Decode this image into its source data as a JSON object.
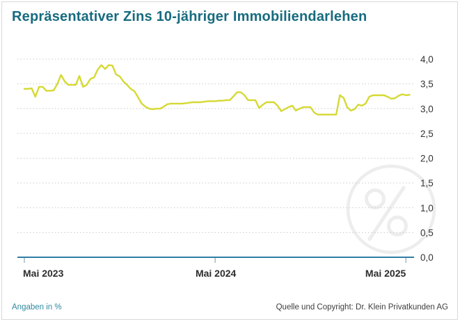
{
  "title": "Repräsentativer Zins 10-jähriger Immobiliendarlehen",
  "footer": {
    "unit_note": "Angaben in %",
    "source": "Quelle und Copyright: Dr. Klein Privatkunden AG"
  },
  "watermark_icon": "percent-circle-icon",
  "colors": {
    "title": "#176b7f",
    "line": "#d5d932",
    "axis": "#2f7ea6",
    "grid": "#c9c9c9",
    "tick": "#8fa6b0",
    "x_label": "#2d2d2d",
    "y_label": "#333333",
    "unit_note": "#2d8ba1",
    "source": "#3d3d3d",
    "watermark": "#ededed",
    "border": "#d9d9d9"
  },
  "chart_data": {
    "type": "line",
    "title": "Repräsentativer Zins 10-jähriger Immobiliendarlehen",
    "unit": "%",
    "xlabel": "",
    "ylabel": "",
    "ylim": [
      0.0,
      4.0
    ],
    "grid": "dotted horizontal gridlines, solid blue baseline at 0,0",
    "legend": "none",
    "x_tick_labels": [
      "Mai 2023",
      "Mai 2024",
      "Mai 2025"
    ],
    "x_tick_weeks": [
      0,
      52,
      104
    ],
    "y_ticks": [
      4.0,
      3.5,
      3.0,
      2.5,
      2.0,
      1.5,
      1.0,
      0.5,
      0.0
    ],
    "y_tick_labels": [
      "4,0",
      "3,5",
      "3,0",
      "2,5",
      "2,0",
      "1,5",
      "1,0",
      "0,5",
      "0,0"
    ],
    "series": [
      {
        "name": "Repräsentativer Zins 10-jähriger Immobiliendarlehen (% p.a.)",
        "x_unit": "week_index_from_Mai_2023",
        "values": [
          3.4,
          3.4,
          3.41,
          3.24,
          3.44,
          3.44,
          3.36,
          3.36,
          3.37,
          3.5,
          3.68,
          3.55,
          3.48,
          3.48,
          3.48,
          3.66,
          3.44,
          3.48,
          3.6,
          3.63,
          3.79,
          3.88,
          3.8,
          3.88,
          3.87,
          3.69,
          3.65,
          3.55,
          3.48,
          3.4,
          3.35,
          3.23,
          3.1,
          3.04,
          3.0,
          2.99,
          3.0,
          3.0,
          3.04,
          3.09,
          3.1,
          3.1,
          3.1,
          3.1,
          3.11,
          3.12,
          3.13,
          3.13,
          3.13,
          3.14,
          3.15,
          3.15,
          3.15,
          3.16,
          3.16,
          3.17,
          3.17,
          3.25,
          3.33,
          3.33,
          3.27,
          3.17,
          3.17,
          3.17,
          3.01,
          3.08,
          3.13,
          3.13,
          3.13,
          3.06,
          2.95,
          2.99,
          3.03,
          3.06,
          2.96,
          3.0,
          3.03,
          3.03,
          3.03,
          2.92,
          2.88,
          2.88,
          2.88,
          2.88,
          2.88,
          2.88,
          3.27,
          3.22,
          3.03,
          2.96,
          2.99,
          3.08,
          3.06,
          3.1,
          3.24,
          3.27,
          3.27,
          3.27,
          3.27,
          3.24,
          3.2,
          3.21,
          3.26,
          3.29,
          3.27,
          3.28
        ]
      }
    ]
  }
}
